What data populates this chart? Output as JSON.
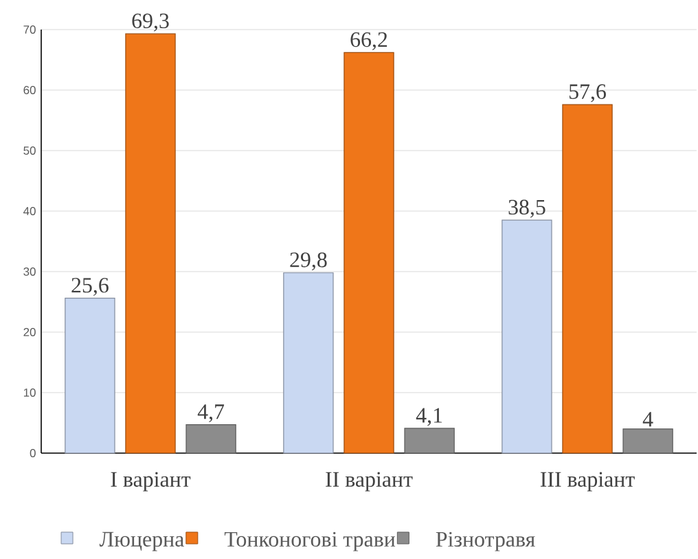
{
  "chart_data": {
    "type": "bar",
    "categories": [
      "I варіант",
      "II варіант",
      "III варіант"
    ],
    "series": [
      {
        "name": "Люцерна",
        "color": "#c9d8f2",
        "values": [
          25.6,
          29.8,
          38.5
        ],
        "value_labels": [
          "25,6",
          "29,8",
          "38,5"
        ]
      },
      {
        "name": "Тонконогові трави",
        "color": "#ef7619",
        "values": [
          69.3,
          66.2,
          57.6
        ],
        "value_labels": [
          "69,3",
          "66,2",
          "57,6"
        ]
      },
      {
        "name": "Різнотравя",
        "color": "#8c8c8c",
        "values": [
          4.7,
          4.1,
          4
        ],
        "value_labels": [
          "4,7",
          "4,1",
          "4"
        ]
      }
    ],
    "ylim": [
      0,
      70
    ],
    "yticks": [
      0,
      10,
      20,
      30,
      40,
      50,
      60,
      70
    ],
    "grid": "y",
    "legend": "bottom"
  }
}
